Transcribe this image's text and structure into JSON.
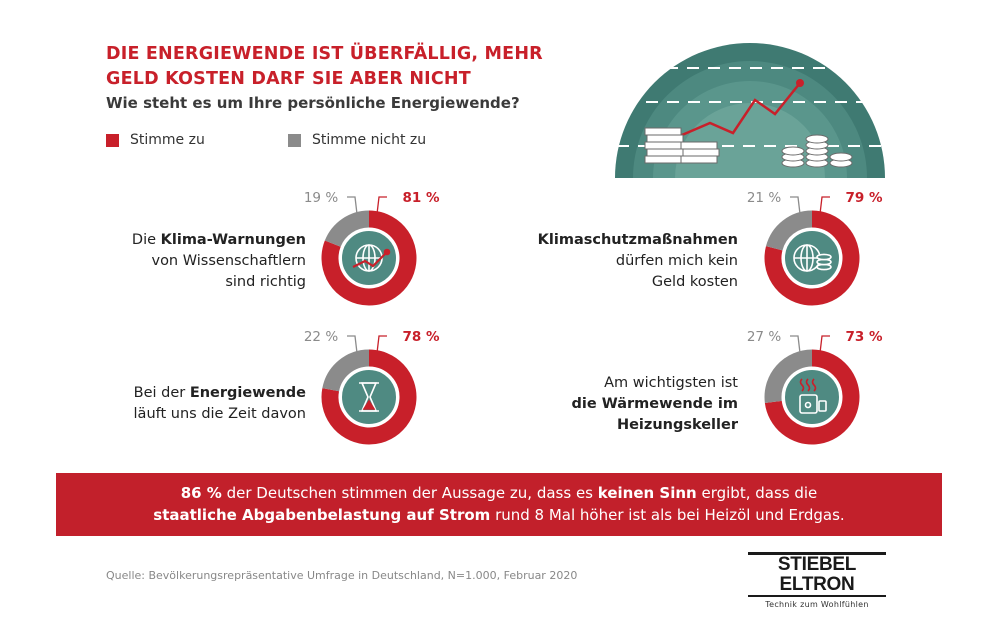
{
  "header": {
    "title_line1": "DIE ENERGIEWENDE IST ÜBERFÄLLIG, MEHR",
    "title_line2": "GELD KOSTEN DARF SIE ABER NICHT",
    "subtitle": "Wie steht es um Ihre persönliche Energiewende?"
  },
  "legend": {
    "agree": "Stimme zu",
    "disagree": "Stimme nicht zu"
  },
  "colors": {
    "agree": "#c8202a",
    "disagree": "#8b8b8b",
    "teal": "#4f8a82"
  },
  "statements": [
    {
      "pre": "Die ",
      "bold": "Klima-Warnungen",
      "rest1": "von Wissenschaftlern",
      "rest2": "sind richtig",
      "icon": "globe-trend-icon",
      "agree_label": "81 %",
      "disagree_label": "19 %"
    },
    {
      "pre": "",
      "bold": "Klimaschutzmaßnahmen",
      "rest1": "dürfen mich kein",
      "rest2": "Geld kosten",
      "icon": "globe-coins-icon",
      "agree_label": "79 %",
      "disagree_label": "21 %"
    },
    {
      "pre": "Bei der ",
      "bold": "Energiewende",
      "rest1": "läuft uns die Zeit davon",
      "rest2": "",
      "icon": "hourglass-icon",
      "agree_label": "78 %",
      "disagree_label": "22 %"
    },
    {
      "pre": "Am wichtigsten ist",
      "bold": "die Wärmewende im",
      "rest1": "Heizungskeller",
      "rest2": "",
      "icon": "heater-icon",
      "agree_label": "73 %",
      "disagree_label": "27 %"
    }
  ],
  "chart_data": {
    "type": "pie",
    "subtype": "donut",
    "series": [
      {
        "name": "Stimme zu",
        "values": [
          81,
          79,
          78,
          73
        ]
      },
      {
        "name": "Stimme nicht zu",
        "values": [
          19,
          21,
          22,
          27
        ]
      }
    ],
    "categories": [
      "Die Klima-Warnungen von Wissenschaftlern sind richtig",
      "Klimaschutzmaßnahmen dürfen mich kein Geld kosten",
      "Bei der Energiewende läuft uns die Zeit davon",
      "Am wichtigsten ist die Wärmewende im Heizungskeller"
    ],
    "unit": "%"
  },
  "banner": {
    "pct": "86 %",
    "part1": " der Deutschen stimmen der Aussage zu, dass es ",
    "bold1": "keinen Sinn",
    "part2": " ergibt, dass die",
    "bold2": "staatliche Abgabenbelastung auf Strom",
    "part3": " rund 8 Mal höher ist als bei Heizöl und Erdgas."
  },
  "source": "Quelle: Bevölkerungsrepräsentative Umfrage in Deutschland, N=1.000, Februar 2020",
  "logo": {
    "name": "STIEBEL ELTRON",
    "tagline": "Technik zum Wohlfühlen"
  }
}
